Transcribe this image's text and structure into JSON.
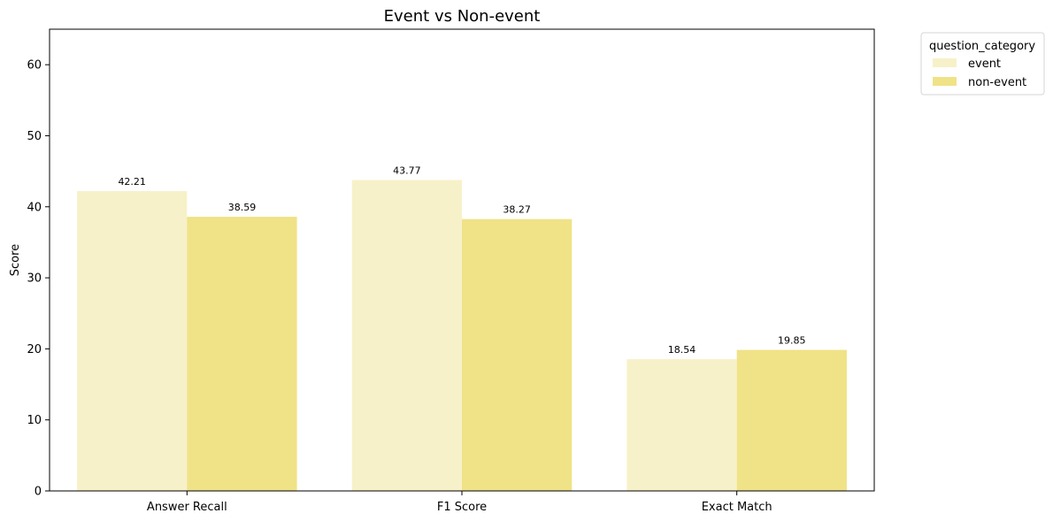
{
  "chart_data": {
    "type": "bar",
    "title": "Event vs Non-event",
    "xlabel": "",
    "ylabel": "Score",
    "categories": [
      "Answer Recall",
      "F1 Score",
      "Exact Match"
    ],
    "series": [
      {
        "name": "event",
        "values": [
          42.21,
          43.77,
          18.54
        ],
        "color": "#f7f1c9"
      },
      {
        "name": "non-event",
        "values": [
          38.59,
          38.27,
          19.85
        ],
        "color": "#f0e287"
      }
    ],
    "data_labels": [
      [
        "42.21",
        "43.77",
        "18.54"
      ],
      [
        "38.59",
        "38.27",
        "19.85"
      ]
    ],
    "ylim": [
      0,
      65
    ],
    "yticks": [
      0,
      10,
      20,
      30,
      40,
      50,
      60
    ],
    "grid": false,
    "legend": {
      "title": "question_category",
      "placement": "outside-top-right"
    }
  }
}
